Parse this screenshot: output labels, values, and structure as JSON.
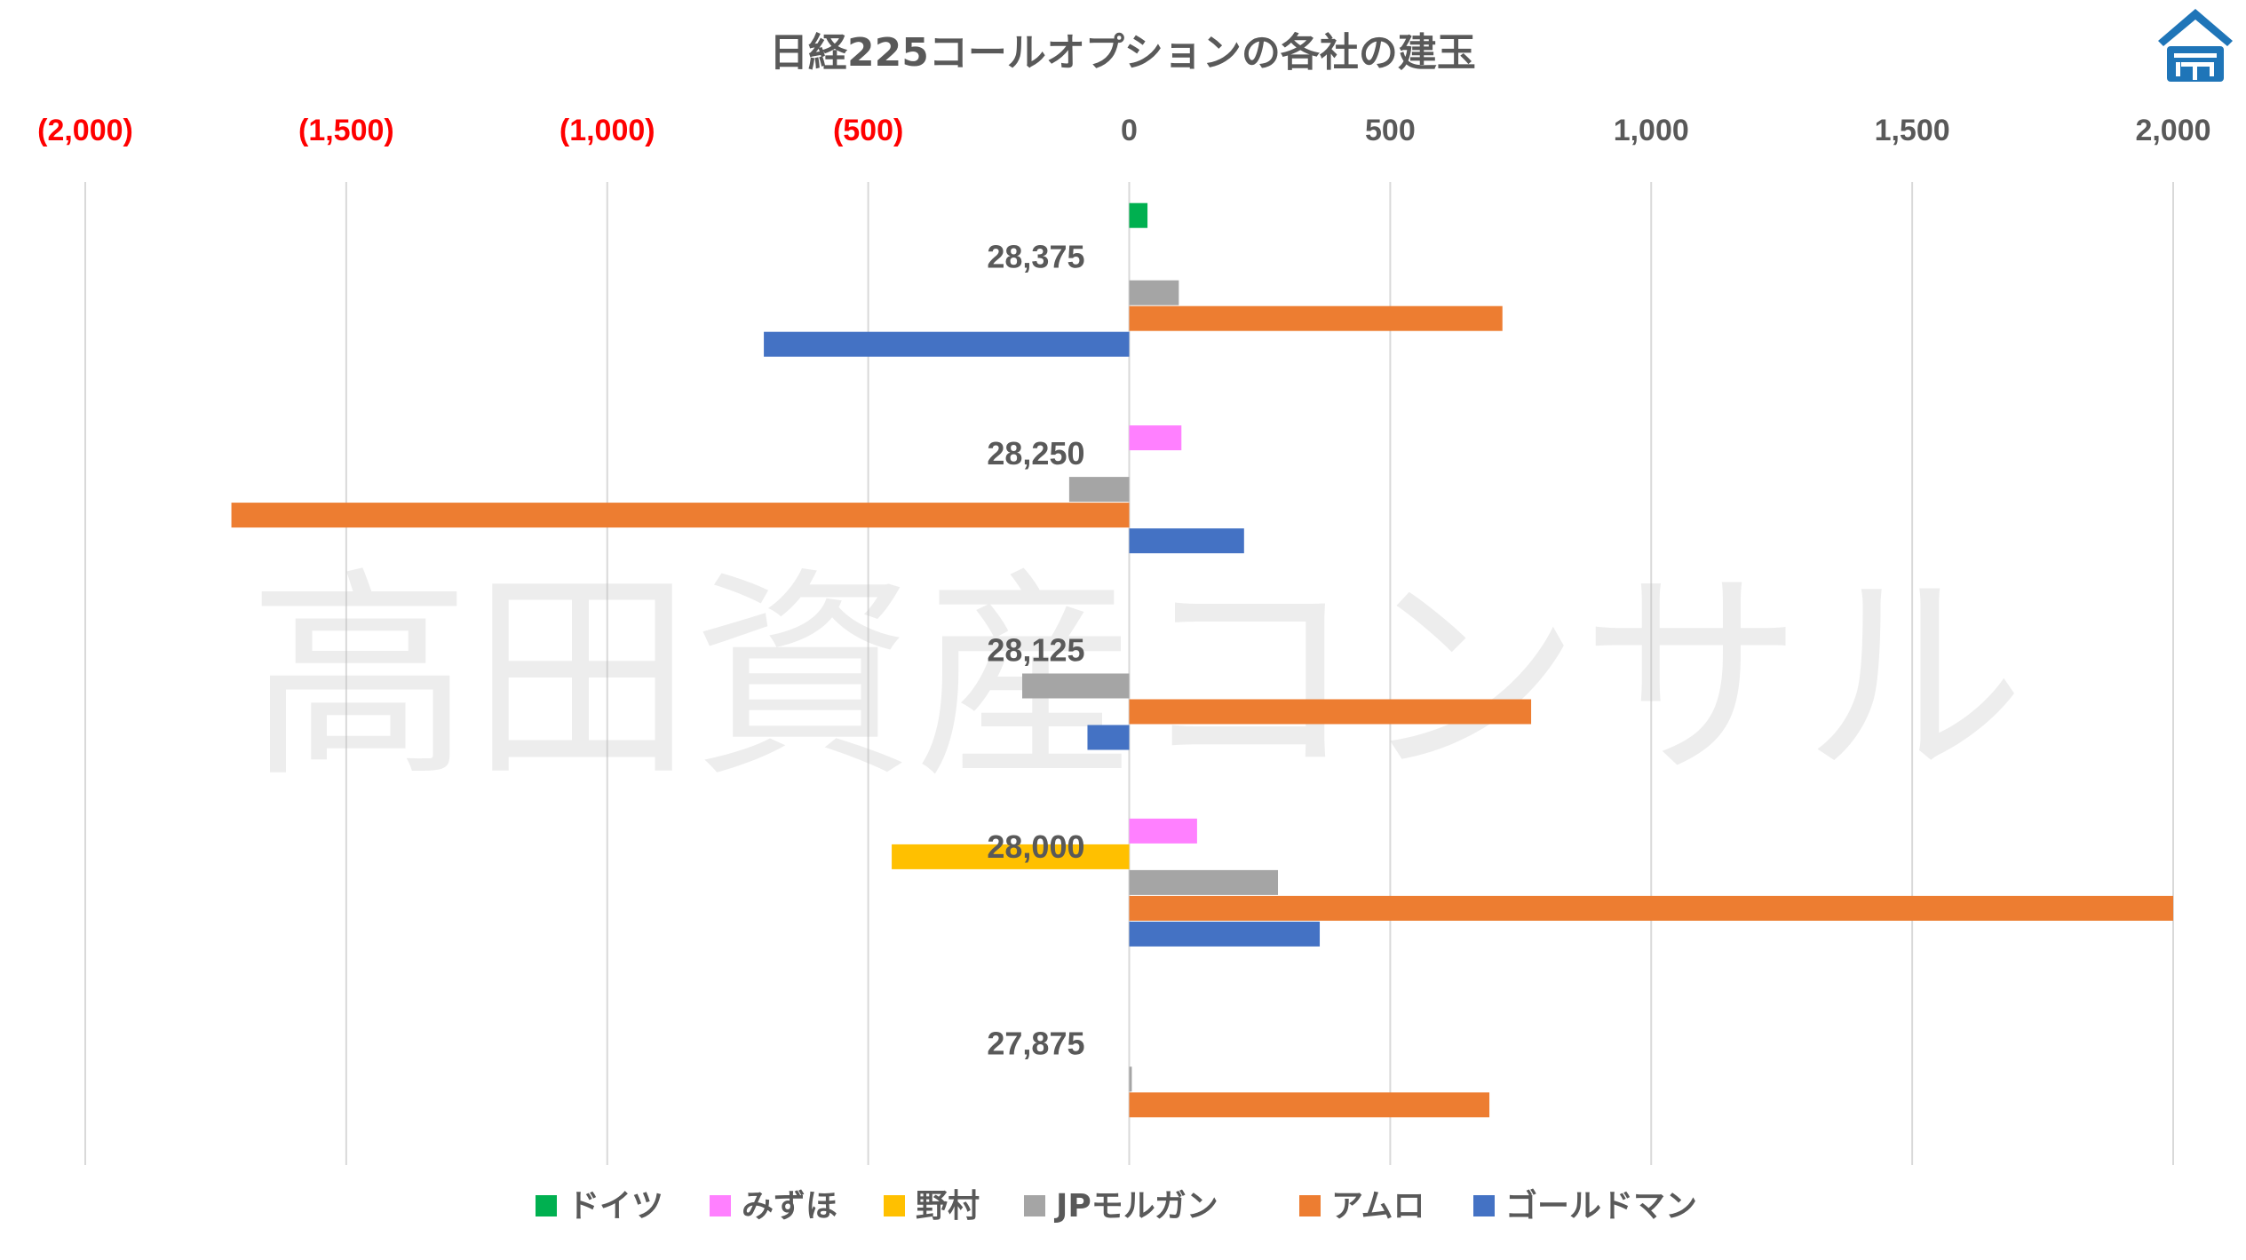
{
  "watermark": "高田資産コンサル",
  "logo_icon": "takada-logo-icon",
  "chart_data": {
    "type": "bar",
    "orientation": "horizontal",
    "title": "日経225コールオプションの各社の建玉",
    "xlim": [
      -2000,
      2000
    ],
    "x_ticks": [
      -2000,
      -1500,
      -1000,
      -500,
      0,
      500,
      1000,
      1500,
      2000
    ],
    "x_tick_labels": [
      "(2,000)",
      "(1,500)",
      "(1,000)",
      "(500)",
      "0",
      "500",
      "1,000",
      "1,500",
      "2,000"
    ],
    "negative_tick_color": "#ff0000",
    "positive_tick_color": "#595959",
    "grid": "vertical",
    "legend_position": "bottom",
    "categories": [
      "28,375",
      "28,250",
      "28,125",
      "28,000",
      "27,875"
    ],
    "series": [
      {
        "name": "ドイツ",
        "color": "#00b050",
        "values": [
          35,
          0,
          0,
          0,
          0
        ]
      },
      {
        "name": "みずほ",
        "color": "#ff80ff",
        "values": [
          0,
          100,
          0,
          130,
          0
        ]
      },
      {
        "name": "野村",
        "color": "#ffc000",
        "values": [
          0,
          0,
          0,
          -455,
          0
        ]
      },
      {
        "name": "JPモルガン",
        "color": "#a5a5a5",
        "values": [
          95,
          -115,
          -205,
          285,
          5
        ]
      },
      {
        "name": "アムロ",
        "color": "#ed7d31",
        "values": [
          715,
          -1720,
          770,
          2000,
          690
        ]
      },
      {
        "name": "ゴールドマン",
        "color": "#4472c4",
        "values": [
          -700,
          220,
          -80,
          365,
          0
        ]
      }
    ]
  }
}
